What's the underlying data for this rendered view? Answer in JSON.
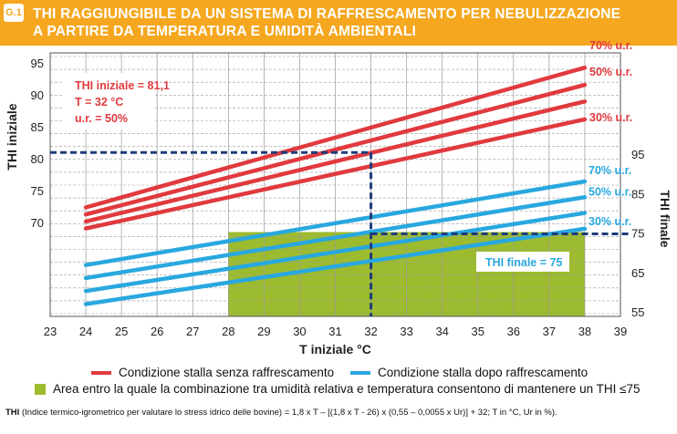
{
  "figure_label": "G.1",
  "title": "THI RAGGIUNGIBILE DA UN SISTEMA DI RAFFRESCAMENTO PER NEBULIZZAZIONE\nA PARTIRE DA TEMPERATURA E UMIDITÀ AMBIENTALI",
  "colors": {
    "header": "#f5a71f",
    "red": "#e03a3e",
    "blue": "#29a8df",
    "green": "#9dbb2e",
    "navy": "#1f3c7a"
  },
  "chart_data": {
    "type": "line",
    "xlabel": "T iniziale °C",
    "ylabel_left": "THI iniziale",
    "ylabel_right": "THI finale",
    "x_ticks": [
      23,
      24,
      25,
      26,
      27,
      28,
      29,
      30,
      31,
      32,
      33,
      34,
      35,
      36,
      37,
      38,
      39
    ],
    "xlim": [
      23,
      39
    ],
    "left_ticks": [
      70,
      75,
      80,
      85,
      90,
      95
    ],
    "right_ticks": [
      55,
      65,
      75,
      85,
      95
    ],
    "series_red": [
      {
        "label": "70% u.r.",
        "x": [
          24,
          38
        ],
        "y": [
          72.5,
          94.4
        ]
      },
      {
        "label": "50% u.r.",
        "x": [
          24,
          38
        ],
        "y": [
          71.4,
          91.7
        ]
      },
      {
        "label": "",
        "x": [
          24,
          38
        ],
        "y": [
          70.3,
          89.1
        ]
      },
      {
        "label": "30% u.r.",
        "x": [
          24,
          38
        ],
        "y": [
          69.2,
          86.3
        ]
      }
    ],
    "series_blue": [
      {
        "label": "70% u.r.",
        "x": [
          24,
          38
        ],
        "y": [
          67.1,
          88.3
        ]
      },
      {
        "label": "50% u.r.",
        "x": [
          24,
          38
        ],
        "y": [
          63.8,
          84.3
        ]
      },
      {
        "label": "",
        "x": [
          24,
          38
        ],
        "y": [
          60.5,
          80.3
        ]
      },
      {
        "label": "30% u.r.",
        "x": [
          24,
          38
        ],
        "y": [
          57.2,
          76.3
        ]
      }
    ],
    "green_region": {
      "x": [
        28,
        38
      ],
      "thi_final_max": 75
    },
    "example_point": {
      "t": 32,
      "thi_initial": 81.1,
      "thi_final": 75
    }
  },
  "annotations": {
    "initial_box": [
      "THI iniziale = 81,1",
      "T = 32 °C",
      "u.r. = 50%"
    ],
    "final_box": "THI finale = 75"
  },
  "legend": {
    "red": "Condizione stalla senza raffrescamento",
    "blue": "Condizione stalla dopo raffrescamento",
    "green": "Area entro la quale la combinazione tra umidità relativa e temperatura consentono di mantenere un THI ≤75"
  },
  "footnote": {
    "bold": "THI",
    "text": " (Indice termico-igrometrico per valutare lo stress idrico delle bovine) = 1,8 x T – [(1,8 x T - 26) x (0,55 – 0,0055 x Ur)] + 32; T in °C, Ur in %)."
  }
}
